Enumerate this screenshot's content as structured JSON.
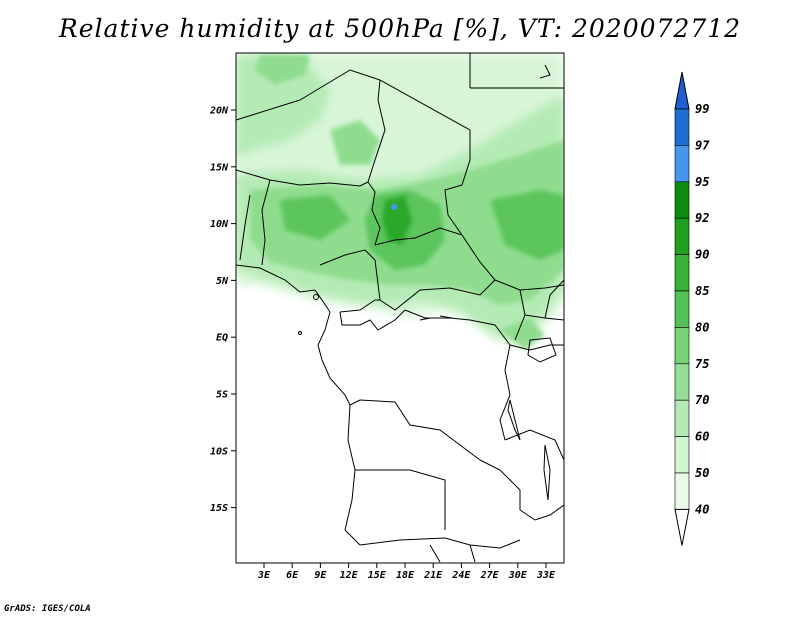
{
  "title": "Relative humidity at 500hPa [%], VT: 2020072712",
  "credit": "GrADS: IGES/COLA",
  "map": {
    "lat_labels": [
      "20N",
      "15N",
      "10N",
      "5N",
      "EQ",
      "5S",
      "10S",
      "15S"
    ],
    "lon_labels": [
      "3E",
      "6E",
      "9E",
      "12E",
      "15E",
      "18E",
      "21E",
      "24E",
      "27E",
      "30E",
      "33E"
    ]
  },
  "colorbar": {
    "levels": [
      "99",
      "97",
      "95",
      "92",
      "90",
      "85",
      "80",
      "75",
      "70",
      "60",
      "50",
      "40"
    ],
    "colors": [
      "#1e6ed2",
      "#1e6ed2",
      "#4696f0",
      "#0e8c12",
      "#1ea01e",
      "#37b137",
      "#55c255",
      "#78d278",
      "#96de96",
      "#b4eab4",
      "#d2f5d2",
      "#ebfbeb"
    ],
    "top_arrow_color": "#1f5fcf",
    "bottom_arrow_color": "#ffffff"
  }
}
